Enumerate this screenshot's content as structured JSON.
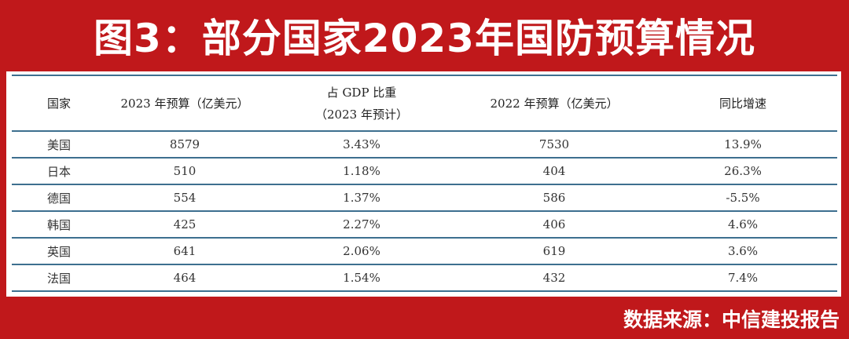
{
  "title": "图3：部分国家2023年国防预算情况",
  "table": {
    "headers": [
      {
        "line1": "国家",
        "line2": ""
      },
      {
        "line1": "2023 年预算（亿美元）",
        "line2": ""
      },
      {
        "line1": "占 GDP 比重",
        "line2": "（2023 年预计）"
      },
      {
        "line1": "2022 年预算（亿美元）",
        "line2": ""
      },
      {
        "line1": "同比增速",
        "line2": ""
      }
    ],
    "rows": [
      {
        "country": "美国",
        "budget2023": "8579",
        "gdp_share": "3.43%",
        "budget2022": "7530",
        "growth": "13.9%"
      },
      {
        "country": "日本",
        "budget2023": "510",
        "gdp_share": "1.18%",
        "budget2022": "404",
        "growth": "26.3%"
      },
      {
        "country": "德国",
        "budget2023": "554",
        "gdp_share": "1.37%",
        "budget2022": "586",
        "growth": "-5.5%"
      },
      {
        "country": "韩国",
        "budget2023": "425",
        "gdp_share": "2.27%",
        "budget2022": "406",
        "growth": "4.6%"
      },
      {
        "country": "英国",
        "budget2023": "641",
        "gdp_share": "2.06%",
        "budget2022": "619",
        "growth": "3.6%"
      },
      {
        "country": "法国",
        "budget2023": "464",
        "gdp_share": "1.54%",
        "budget2022": "432",
        "growth": "7.4%"
      }
    ]
  },
  "source": "数据来源：中信建投报告",
  "colors": {
    "banner": "#c0181b",
    "rule": "#3d6f8f",
    "text": "#222222"
  }
}
